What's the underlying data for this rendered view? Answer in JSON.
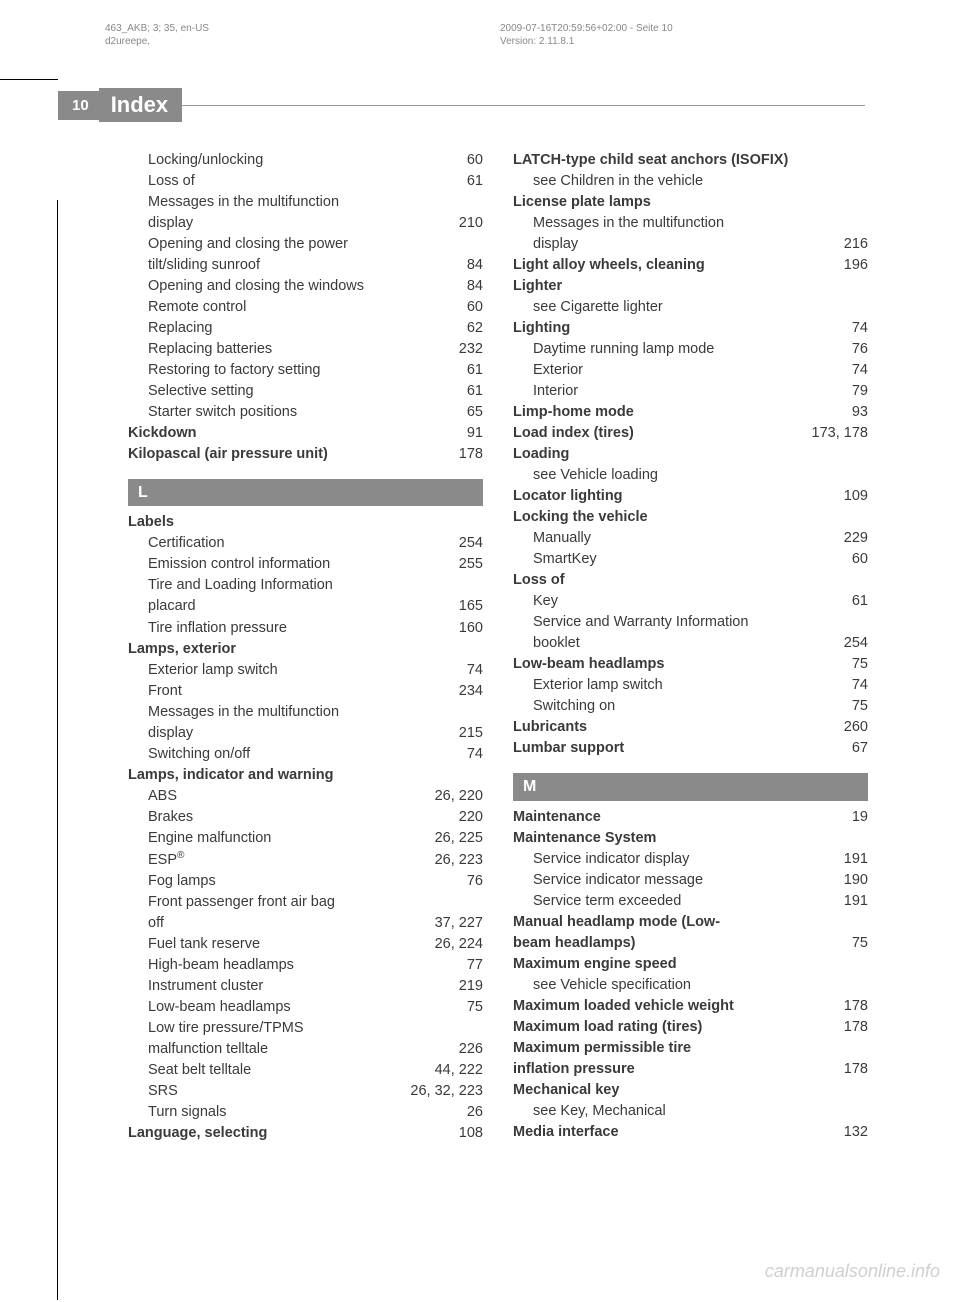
{
  "meta": {
    "left_line1": "463_AKB; 3; 35, en-US",
    "left_line2": "d2ureepe,",
    "right_line1": "2009-07-16T20:59:56+02:00 - Seite 10",
    "right_line2": "Version: 2.11.8.1"
  },
  "watermark": "carmanualsonline.info",
  "page_number": "10",
  "page_title": "Index",
  "col1": [
    {
      "type": "sub",
      "label": "Locking/unlocking",
      "pg": "60"
    },
    {
      "type": "sub",
      "label": "Loss of",
      "pg": "61"
    },
    {
      "type": "sub-nobreak",
      "label": "Messages in the multifunction"
    },
    {
      "type": "sub-cont",
      "label": "display",
      "pg": "210"
    },
    {
      "type": "sub-nobreak",
      "label": "Opening and closing the power"
    },
    {
      "type": "sub-cont",
      "label": "tilt/sliding sunroof",
      "pg": "84"
    },
    {
      "type": "sub",
      "label": "Opening and closing the windows",
      "pg": "84"
    },
    {
      "type": "sub",
      "label": "Remote control",
      "pg": "60"
    },
    {
      "type": "sub",
      "label": "Replacing",
      "pg": "62"
    },
    {
      "type": "sub",
      "label": "Replacing batteries",
      "pg": "232"
    },
    {
      "type": "sub",
      "label": "Restoring to factory setting",
      "pg": "61"
    },
    {
      "type": "sub",
      "label": "Selective setting",
      "pg": "61"
    },
    {
      "type": "sub",
      "label": "Starter switch positions",
      "pg": "65"
    },
    {
      "type": "main",
      "bold": true,
      "label": "Kickdown",
      "pg": "91"
    },
    {
      "type": "main",
      "bold": true,
      "label": "Kilopascal (air pressure unit)",
      "pg": "178"
    },
    {
      "type": "letter",
      "label": "L"
    },
    {
      "type": "head",
      "bold": true,
      "label": "Labels"
    },
    {
      "type": "sub",
      "label": "Certification",
      "pg": "254"
    },
    {
      "type": "sub",
      "label": "Emission control information",
      "pg": "255"
    },
    {
      "type": "sub-nobreak",
      "label": "Tire and Loading Information"
    },
    {
      "type": "sub-cont",
      "label": "placard",
      "pg": "165"
    },
    {
      "type": "sub",
      "label": "Tire inflation pressure",
      "pg": "160"
    },
    {
      "type": "head",
      "bold": true,
      "label": "Lamps, exterior"
    },
    {
      "type": "sub",
      "label": "Exterior lamp switch",
      "pg": "74"
    },
    {
      "type": "sub",
      "label": "Front",
      "pg": "234"
    },
    {
      "type": "sub-nobreak",
      "label": "Messages in the multifunction"
    },
    {
      "type": "sub-cont",
      "label": "display",
      "pg": "215"
    },
    {
      "type": "sub",
      "label": "Switching on/off",
      "pg": "74"
    },
    {
      "type": "head",
      "bold": true,
      "label": "Lamps, indicator and warning"
    },
    {
      "type": "sub",
      "label": "ABS",
      "pg": "26, 220"
    },
    {
      "type": "sub",
      "label": "Brakes",
      "pg": "220"
    },
    {
      "type": "sub",
      "label": "Engine malfunction",
      "pg": "26, 225"
    },
    {
      "type": "sub",
      "label": "ESP®",
      "pg": "26, 223",
      "html": true
    },
    {
      "type": "sub",
      "label": "Fog lamps",
      "pg": "76"
    },
    {
      "type": "sub-nobreak",
      "label": "Front passenger front air bag"
    },
    {
      "type": "sub-cont",
      "label": "off",
      "pg": "37, 227"
    },
    {
      "type": "sub",
      "label": "Fuel tank reserve",
      "pg": "26, 224"
    },
    {
      "type": "sub",
      "label": "High-beam headlamps",
      "pg": "77"
    },
    {
      "type": "sub",
      "label": "Instrument cluster",
      "pg": "219"
    },
    {
      "type": "sub",
      "label": "Low-beam headlamps",
      "pg": "75"
    },
    {
      "type": "sub-nobreak",
      "label": "Low tire pressure/TPMS"
    },
    {
      "type": "sub-cont",
      "label": "malfunction telltale",
      "pg": "226"
    },
    {
      "type": "sub",
      "label": "Seat belt telltale",
      "pg": "44, 222"
    },
    {
      "type": "sub",
      "label": "SRS",
      "pg": "26, 32, 223"
    },
    {
      "type": "sub",
      "label": "Turn signals",
      "pg": "26"
    },
    {
      "type": "main",
      "bold": true,
      "label": "Language, selecting",
      "pg": "108"
    }
  ],
  "col2": [
    {
      "type": "head",
      "bold": true,
      "label": "LATCH-type child seat anchors (ISOFIX)"
    },
    {
      "type": "sub-text",
      "label": "see Children in the vehicle"
    },
    {
      "type": "head",
      "bold": true,
      "label": "License plate lamps"
    },
    {
      "type": "sub-nobreak",
      "label": "Messages in the multifunction"
    },
    {
      "type": "sub-cont",
      "label": "display",
      "pg": "216"
    },
    {
      "type": "main",
      "bold": true,
      "label": "Light alloy wheels, cleaning",
      "pg": "196"
    },
    {
      "type": "head",
      "bold": true,
      "label": "Lighter"
    },
    {
      "type": "sub-text",
      "label": "see Cigarette lighter"
    },
    {
      "type": "main",
      "bold": true,
      "label": "Lighting",
      "pg": "74"
    },
    {
      "type": "sub",
      "label": "Daytime running lamp mode",
      "pg": "76"
    },
    {
      "type": "sub",
      "label": "Exterior",
      "pg": "74"
    },
    {
      "type": "sub",
      "label": "Interior",
      "pg": "79"
    },
    {
      "type": "main",
      "bold": true,
      "label": "Limp-home mode",
      "pg": "93"
    },
    {
      "type": "main",
      "bold": true,
      "label": "Load index (tires)",
      "pg": "173, 178"
    },
    {
      "type": "head",
      "bold": true,
      "label": "Loading"
    },
    {
      "type": "sub-text",
      "label": "see Vehicle loading"
    },
    {
      "type": "main",
      "bold": true,
      "label": "Locator lighting",
      "pg": "109"
    },
    {
      "type": "head",
      "bold": true,
      "label": "Locking the vehicle"
    },
    {
      "type": "sub",
      "label": "Manually",
      "pg": "229"
    },
    {
      "type": "sub",
      "label": "SmartKey",
      "pg": "60"
    },
    {
      "type": "head",
      "bold": true,
      "label": "Loss of"
    },
    {
      "type": "sub",
      "label": "Key",
      "pg": "61"
    },
    {
      "type": "sub-nobreak",
      "label": "Service and Warranty Information"
    },
    {
      "type": "sub-cont",
      "label": "booklet",
      "pg": "254"
    },
    {
      "type": "main",
      "bold": true,
      "label": "Low-beam headlamps",
      "pg": "75"
    },
    {
      "type": "sub",
      "label": "Exterior lamp switch",
      "pg": "74"
    },
    {
      "type": "sub",
      "label": "Switching on",
      "pg": "75"
    },
    {
      "type": "main",
      "bold": true,
      "label": "Lubricants",
      "pg": "260"
    },
    {
      "type": "main",
      "bold": true,
      "label": "Lumbar support",
      "pg": "67"
    },
    {
      "type": "letter",
      "label": "M"
    },
    {
      "type": "main",
      "bold": true,
      "label": "Maintenance",
      "pg": "19"
    },
    {
      "type": "head",
      "bold": true,
      "label": "Maintenance System"
    },
    {
      "type": "sub",
      "label": "Service indicator display",
      "pg": "191"
    },
    {
      "type": "sub",
      "label": "Service indicator message",
      "pg": "190"
    },
    {
      "type": "sub",
      "label": "Service term exceeded",
      "pg": "191"
    },
    {
      "type": "head-nobreak",
      "bold": true,
      "label": "Manual headlamp mode (Low-"
    },
    {
      "type": "main",
      "bold": true,
      "label": "beam headlamps)",
      "pg": "75"
    },
    {
      "type": "head",
      "bold": true,
      "label": "Maximum engine speed"
    },
    {
      "type": "sub-text",
      "label": "see Vehicle specification"
    },
    {
      "type": "main",
      "bold": true,
      "label": "Maximum loaded vehicle weight",
      "pg": "178"
    },
    {
      "type": "main",
      "bold": true,
      "label": "Maximum load rating (tires)",
      "pg": "178"
    },
    {
      "type": "head-nobreak",
      "bold": true,
      "label": "Maximum permissible tire"
    },
    {
      "type": "main",
      "bold": true,
      "label": "inflation pressure",
      "pg": "178"
    },
    {
      "type": "head",
      "bold": true,
      "label": "Mechanical key"
    },
    {
      "type": "sub-text",
      "label": "see Key, Mechanical"
    },
    {
      "type": "main",
      "bold": true,
      "label": "Media interface",
      "pg": "132"
    }
  ]
}
